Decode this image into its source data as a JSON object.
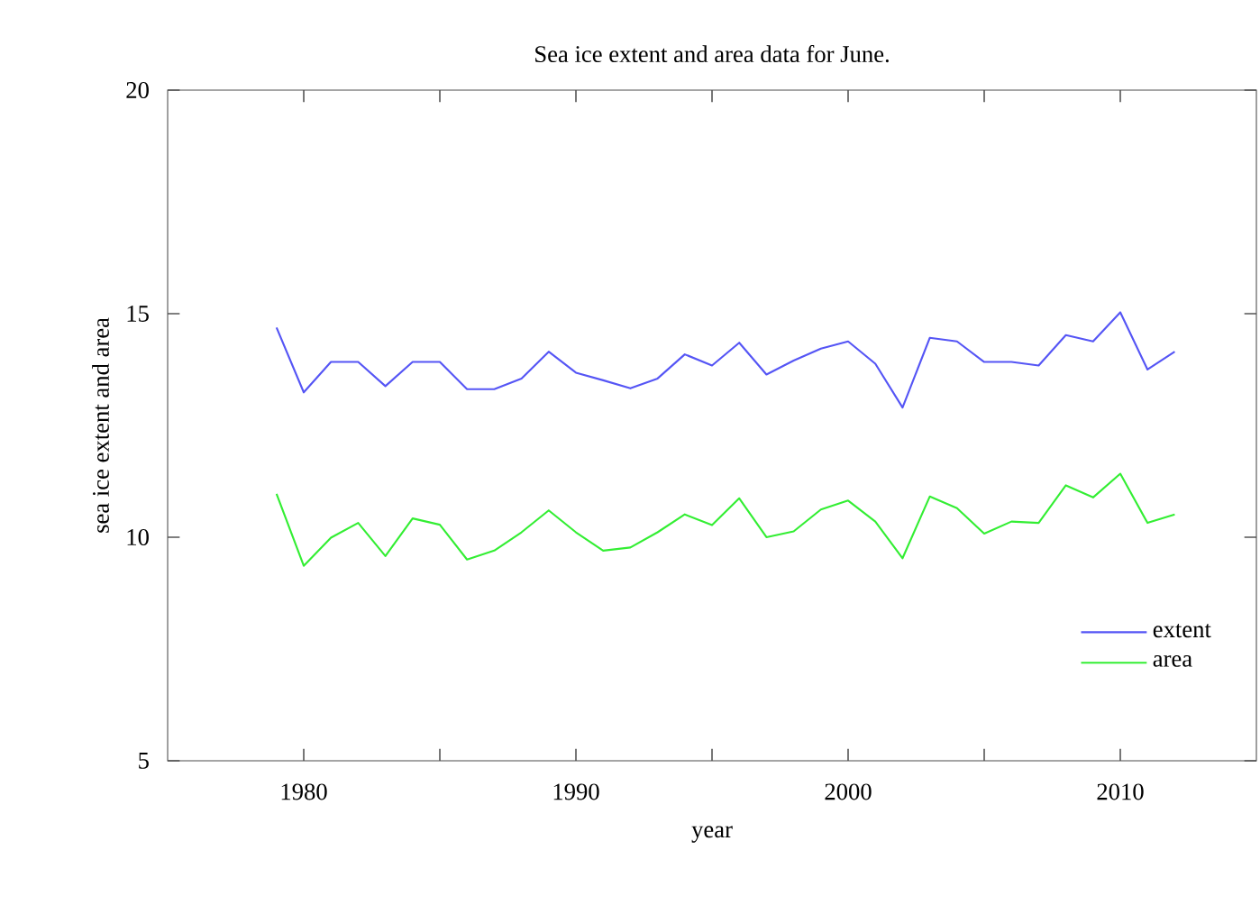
{
  "chart_data": {
    "type": "line",
    "title": "Sea ice extent and area data for June.",
    "xlabel": "year",
    "ylabel": "sea ice extent and area",
    "x": [
      1979,
      1980,
      1981,
      1982,
      1983,
      1984,
      1985,
      1986,
      1987,
      1988,
      1989,
      1990,
      1991,
      1992,
      1993,
      1994,
      1995,
      1996,
      1997,
      1998,
      1999,
      2000,
      2001,
      2002,
      2003,
      2004,
      2005,
      2006,
      2007,
      2008,
      2009,
      2010,
      2011,
      2012
    ],
    "series": [
      {
        "name": "extent",
        "color": "#5555f5",
        "values": [
          14.69,
          13.24,
          13.92,
          13.92,
          13.38,
          13.92,
          13.92,
          13.31,
          13.31,
          13.55,
          14.15,
          13.68,
          13.51,
          13.33,
          13.55,
          14.09,
          13.84,
          14.35,
          13.64,
          13.95,
          14.22,
          14.38,
          13.88,
          12.9,
          14.46,
          14.38,
          13.92,
          13.92,
          13.84,
          14.52,
          14.38,
          15.03,
          13.75,
          14.15
        ]
      },
      {
        "name": "area",
        "color": "#33ee33",
        "values": [
          10.97,
          9.36,
          9.99,
          10.32,
          9.58,
          10.42,
          10.28,
          9.5,
          9.7,
          10.11,
          10.6,
          10.11,
          9.7,
          9.77,
          10.11,
          10.51,
          10.27,
          10.87,
          10.0,
          10.13,
          10.62,
          10.82,
          10.35,
          9.53,
          10.91,
          10.65,
          10.08,
          10.35,
          10.32,
          11.16,
          10.89,
          11.42,
          10.32,
          10.51
        ]
      }
    ],
    "xlim": [
      1975,
      2015
    ],
    "ylim": [
      5,
      20
    ],
    "xticks": [
      1980,
      {
        "value": 1985,
        "label": null
      },
      1990,
      {
        "value": 1995,
        "label": null
      },
      2000,
      {
        "value": 2005,
        "label": null
      },
      2010
    ],
    "yticks": [
      5,
      10,
      15,
      20
    ],
    "legend": "bottom right"
  }
}
